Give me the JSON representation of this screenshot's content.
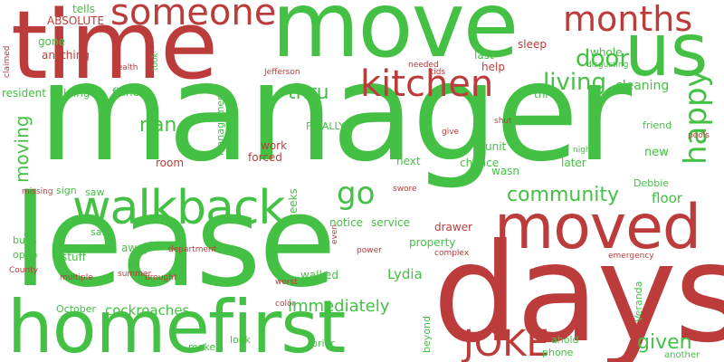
{
  "colors": {
    "green": "#44c144",
    "red": "#bc3c3c",
    "background": "#ffffff"
  },
  "words": {
    "manager": "manager",
    "move": "move",
    "time": "time",
    "lease": "lease",
    "days": "days",
    "home": "home",
    "first": "first",
    "moved": "moved",
    "walkback": "walkback",
    "us": "us",
    "someone": "someone",
    "months": "months",
    "kitchen": "kitchen",
    "joke": "JOKE",
    "go": "go",
    "community": "community",
    "happy": "happy",
    "living": "living",
    "door": "door",
    "thru": "thru",
    "nan": "nan",
    "given": "given",
    "moving": "moving",
    "immediately": "immediately",
    "cockroaches": "cockroaches",
    "lydia": "Lydia",
    "floor": "floor",
    "cleaning": "cleaning",
    "new": "new",
    "friend": "friend",
    "later": "later",
    "next": "next",
    "chance": "chance",
    "wasn": "wasn",
    "unit": "unit",
    "sleep": "sleep",
    "whole": "whole",
    "help": "help",
    "last": "last",
    "three": "three",
    "fiance": "fiance",
    "helping": "helping",
    "resident": "resident",
    "anything": "anything",
    "gone": "gone",
    "absolute": "ABSOLUTE",
    "tells": "tells",
    "claimed": "claimed",
    "health": "health",
    "took": "took",
    "jefferson": "Jefferson",
    "needed": "needed",
    "kids": "kids",
    "disgusting": "disgusting",
    "management": "Management",
    "finally": "FINALLY",
    "work": "work",
    "forced": "forced",
    "room": "room",
    "give": "give",
    "shut": "shut",
    "night": "night",
    "pools": "pools",
    "debbie": "Debbie",
    "weeks": "weeks",
    "sign": "sign",
    "saw": "saw",
    "missing": "missing",
    "swore": "swore",
    "notice": "notice",
    "service": "service",
    "drawer": "drawer",
    "said": "said",
    "bugs": "bugs",
    "away": "away",
    "property": "property",
    "open": "open",
    "stuff": "stuff",
    "department": "department",
    "even": "even",
    "power": "power",
    "complex": "complex",
    "emergency": "emergency",
    "county": "County",
    "multiple": "multiple",
    "summer": "summer",
    "brought": "brought",
    "walked": "walked",
    "worst": "worst",
    "october": "October",
    "color": "color",
    "veranda": "Veranda",
    "beyond": "beyond",
    "ahold": "ahold",
    "phone": "phone",
    "another": "another",
    "make": "make",
    "look": "look",
    "prior": "prior"
  }
}
